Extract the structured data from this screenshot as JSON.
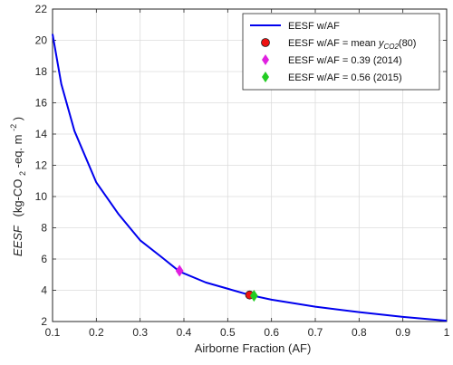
{
  "chart_data": {
    "type": "line",
    "title": "",
    "xlabel": "Airborne Fraction (AF)",
    "ylabel": {
      "italic": "EESF",
      "pre": "(kg-CO",
      "sub1": "2",
      "mid": "-eq. m",
      "sup1": "-2",
      "post": ")"
    },
    "xlim": [
      0.1,
      1.0
    ],
    "ylim": [
      2,
      22
    ],
    "xticks": [
      0.1,
      0.2,
      0.3,
      0.4,
      0.5,
      0.6,
      0.7,
      0.8,
      0.9,
      1
    ],
    "xtick_labels": [
      "0.1",
      "0.2",
      "0.3",
      "0.4",
      "0.5",
      "0.6",
      "0.7",
      "0.8",
      "0.9",
      "1"
    ],
    "yticks": [
      2,
      4,
      6,
      8,
      10,
      12,
      14,
      16,
      18,
      20,
      22
    ],
    "ytick_labels": [
      "2",
      "4",
      "6",
      "8",
      "10",
      "12",
      "14",
      "16",
      "18",
      "20",
      "22"
    ],
    "grid": true,
    "legend_position": "top-right",
    "series": [
      {
        "name": "EESF w/AF",
        "kind": "line",
        "color": "#0000ee",
        "x": [
          0.1,
          0.12,
          0.15,
          0.2,
          0.25,
          0.3,
          0.35,
          0.39,
          0.45,
          0.5,
          0.55,
          0.6,
          0.7,
          0.8,
          0.9,
          1.0
        ],
        "y": [
          20.4,
          17.2,
          14.2,
          10.9,
          8.9,
          7.2,
          6.1,
          5.2,
          4.5,
          4.1,
          3.7,
          3.4,
          2.95,
          2.6,
          2.3,
          2.05
        ]
      },
      {
        "name": "EESF w/AF = mean y_CO2(80)",
        "label_parts": {
          "pre": "EESF w/AF = mean ",
          "italic": "y",
          "sub": "CO2",
          "post": "(80)"
        },
        "kind": "marker",
        "marker": "circle",
        "color": "#ee1111",
        "x": [
          0.55
        ],
        "y": [
          3.7
        ]
      },
      {
        "name": "EESF w/AF = 0.39 (2014)",
        "kind": "marker",
        "marker": "diamond",
        "color": "#e020e0",
        "x": [
          0.39
        ],
        "y": [
          5.25
        ]
      },
      {
        "name": "EESF w/AF = 0.56 (2015)",
        "kind": "marker",
        "marker": "diamond",
        "color": "#22cc22",
        "x": [
          0.56
        ],
        "y": [
          3.65
        ]
      }
    ]
  }
}
